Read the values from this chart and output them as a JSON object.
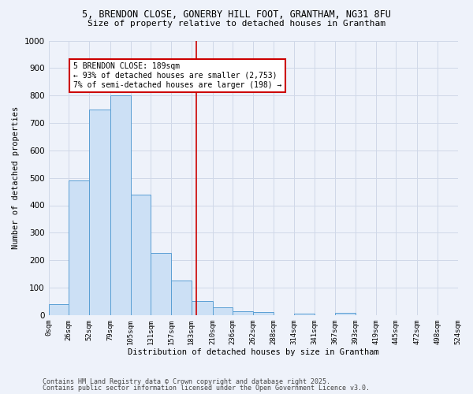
{
  "title_line1": "5, BRENDON CLOSE, GONERBY HILL FOOT, GRANTHAM, NG31 8FU",
  "title_line2": "Size of property relative to detached houses in Grantham",
  "xlabel": "Distribution of detached houses by size in Grantham",
  "ylabel": "Number of detached properties",
  "bar_edges": [
    0,
    26,
    52,
    79,
    105,
    131,
    157,
    183,
    210,
    236,
    262,
    288,
    314,
    341,
    367,
    393,
    419,
    445,
    472,
    498,
    524
  ],
  "bar_heights": [
    40,
    490,
    750,
    800,
    440,
    225,
    125,
    50,
    28,
    15,
    10,
    0,
    5,
    0,
    8,
    0,
    0,
    0,
    0,
    0
  ],
  "bar_color": "#cce0f5",
  "bar_edge_color": "#5a9fd4",
  "property_size": 189,
  "vline_color": "#cc0000",
  "annotation_text": "5 BRENDON CLOSE: 189sqm\n← 93% of detached houses are smaller (2,753)\n7% of semi-detached houses are larger (198) →",
  "annotation_box_color": "#ffffff",
  "annotation_box_edge": "#cc0000",
  "ylim": [
    0,
    1000
  ],
  "grid_color": "#d0d8e8",
  "bg_color": "#eef2fa",
  "footer_line1": "Contains HM Land Registry data © Crown copyright and database right 2025.",
  "footer_line2": "Contains public sector information licensed under the Open Government Licence v3.0.",
  "tick_labels": [
    "0sqm",
    "26sqm",
    "52sqm",
    "79sqm",
    "105sqm",
    "131sqm",
    "157sqm",
    "183sqm",
    "210sqm",
    "236sqm",
    "262sqm",
    "288sqm",
    "314sqm",
    "341sqm",
    "367sqm",
    "393sqm",
    "419sqm",
    "445sqm",
    "472sqm",
    "498sqm",
    "524sqm"
  ]
}
